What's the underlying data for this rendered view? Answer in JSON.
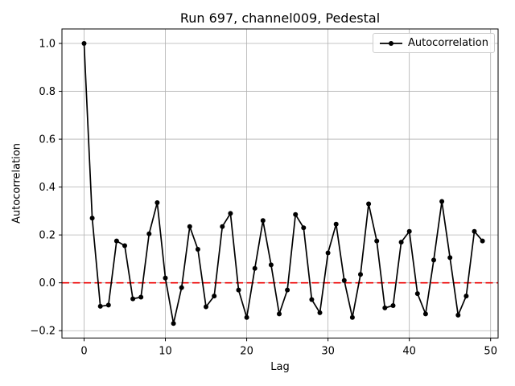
{
  "chart_data": {
    "type": "line",
    "title": "Run 697, channel009, Pedestal",
    "xlabel": "Lag",
    "ylabel": "Autocorrelation",
    "legend_entries": [
      "Autocorrelation"
    ],
    "legend_position": "upper right",
    "grid": true,
    "xlim": [
      -2.72,
      50.92
    ],
    "ylim": [
      -0.2305,
      1.0605
    ],
    "x_ticks": [
      0,
      10,
      20,
      30,
      40,
      50
    ],
    "x_tick_labels": [
      "0",
      "10",
      "20",
      "30",
      "40",
      "50"
    ],
    "y_ticks": [
      -0.2,
      0.0,
      0.2,
      0.4,
      0.6,
      0.8,
      1.0
    ],
    "y_tick_labels": [
      "−0.2",
      "0.0",
      "0.2",
      "0.4",
      "0.6",
      "0.8",
      "1.0"
    ],
    "zero_line": {
      "y": 0.0,
      "color": "#ee0000",
      "style": "dashed"
    },
    "colors": {
      "series": "#000000",
      "grid": "#b0b0b0",
      "spine": "#000000",
      "background": "#ffffff",
      "legend_border": "#cccccc"
    },
    "series": [
      {
        "name": "Autocorrelation",
        "marker": "circle",
        "color": "#000000",
        "x": [
          0,
          1,
          2,
          3,
          4,
          5,
          6,
          7,
          8,
          9,
          10,
          11,
          12,
          13,
          14,
          15,
          16,
          17,
          18,
          19,
          20,
          21,
          22,
          23,
          24,
          25,
          26,
          27,
          28,
          29,
          30,
          31,
          32,
          33,
          34,
          35,
          36,
          37,
          38,
          39,
          40,
          41,
          42,
          43,
          44,
          45,
          46,
          47,
          48,
          49
        ],
        "y": [
          1.0,
          0.27,
          -0.098,
          -0.093,
          0.175,
          0.155,
          -0.067,
          -0.06,
          0.205,
          0.335,
          0.02,
          -0.17,
          -0.02,
          0.235,
          0.14,
          -0.1,
          -0.055,
          0.235,
          0.29,
          -0.03,
          -0.145,
          0.06,
          0.26,
          0.075,
          -0.13,
          -0.03,
          0.285,
          0.23,
          -0.07,
          -0.125,
          0.125,
          0.245,
          0.01,
          -0.145,
          0.035,
          0.33,
          0.175,
          -0.105,
          -0.095,
          0.17,
          0.215,
          -0.045,
          -0.13,
          0.095,
          0.34,
          0.105,
          -0.135,
          -0.055,
          0.215,
          0.175
        ]
      }
    ]
  }
}
